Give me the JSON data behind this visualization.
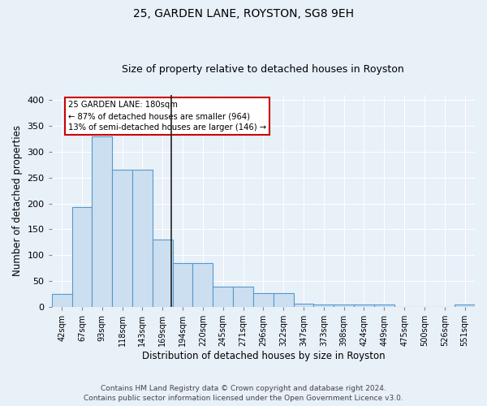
{
  "title1": "25, GARDEN LANE, ROYSTON, SG8 9EH",
  "title2": "Size of property relative to detached houses in Royston",
  "xlabel": "Distribution of detached houses by size in Royston",
  "ylabel": "Number of detached properties",
  "categories": [
    "42sqm",
    "67sqm",
    "93sqm",
    "118sqm",
    "143sqm",
    "169sqm",
    "194sqm",
    "220sqm",
    "245sqm",
    "271sqm",
    "296sqm",
    "322sqm",
    "347sqm",
    "373sqm",
    "398sqm",
    "424sqm",
    "449sqm",
    "475sqm",
    "500sqm",
    "526sqm",
    "551sqm"
  ],
  "values": [
    25,
    193,
    330,
    265,
    265,
    130,
    85,
    85,
    40,
    40,
    26,
    26,
    7,
    4,
    5,
    4,
    4,
    0,
    0,
    0,
    4
  ],
  "bar_color": "#ccdff0",
  "bar_edge_color": "#5599cc",
  "annotation_line1": "25 GARDEN LANE: 180sqm",
  "annotation_line2": "← 87% of detached houses are smaller (964)",
  "annotation_line3": "13% of semi-detached houses are larger (146) →",
  "annotation_box_color": "#ffffff",
  "annotation_box_edge": "#cc0000",
  "vline_x": 5.44,
  "ylim": [
    0,
    410
  ],
  "yticks": [
    0,
    50,
    100,
    150,
    200,
    250,
    300,
    350,
    400
  ],
  "footer1": "Contains HM Land Registry data © Crown copyright and database right 2024.",
  "footer2": "Contains public sector information licensed under the Open Government Licence v3.0.",
  "bg_color": "#e8f0f8",
  "plot_bg_color": "#e8f0f8"
}
